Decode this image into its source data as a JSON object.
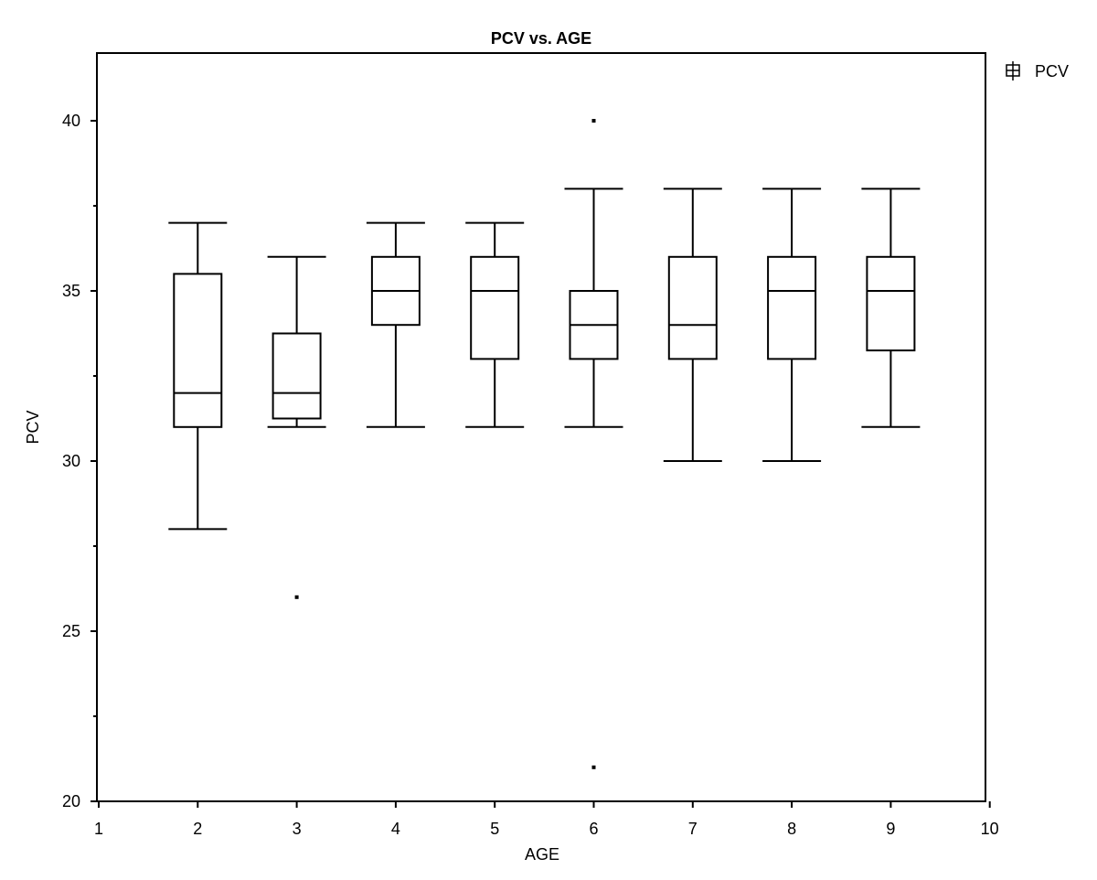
{
  "chart_data": {
    "type": "box",
    "title": "PCV vs. AGE",
    "xlabel": "AGE",
    "ylabel": "PCV",
    "xlim": [
      1,
      10
    ],
    "ylim": [
      20,
      42
    ],
    "x_ticks": [
      1,
      2,
      3,
      4,
      5,
      6,
      7,
      8,
      9,
      10
    ],
    "y_ticks": [
      20,
      25,
      30,
      35,
      40
    ],
    "y_minor_step": 2.5,
    "legend": {
      "label": "PCV",
      "position": "top-right, outside plot"
    },
    "grid": false,
    "series": [
      {
        "name": "PCV",
        "boxes": [
          {
            "x": 2,
            "whisker_low": 28,
            "q1": 31,
            "median": 32,
            "q3": 35.5,
            "whisker_high": 37,
            "outliers": []
          },
          {
            "x": 3,
            "whisker_low": 31,
            "q1": 31.25,
            "median": 32,
            "q3": 33.75,
            "whisker_high": 36,
            "outliers": [
              26
            ]
          },
          {
            "x": 4,
            "whisker_low": 31,
            "q1": 34,
            "median": 35,
            "q3": 36,
            "whisker_high": 37,
            "outliers": []
          },
          {
            "x": 5,
            "whisker_low": 31,
            "q1": 33,
            "median": 35,
            "q3": 36,
            "whisker_high": 37,
            "outliers": []
          },
          {
            "x": 6,
            "whisker_low": 31,
            "q1": 33,
            "median": 34,
            "q3": 35,
            "whisker_high": 38,
            "outliers": [
              40,
              21
            ]
          },
          {
            "x": 7,
            "whisker_low": 30,
            "q1": 33,
            "median": 34,
            "q3": 36,
            "whisker_high": 38,
            "outliers": []
          },
          {
            "x": 8,
            "whisker_low": 30,
            "q1": 33,
            "median": 35,
            "q3": 36,
            "whisker_high": 38,
            "outliers": []
          },
          {
            "x": 9,
            "whisker_low": 31,
            "q1": 33.25,
            "median": 35,
            "q3": 36,
            "whisker_high": 38,
            "outliers": []
          }
        ]
      }
    ]
  }
}
